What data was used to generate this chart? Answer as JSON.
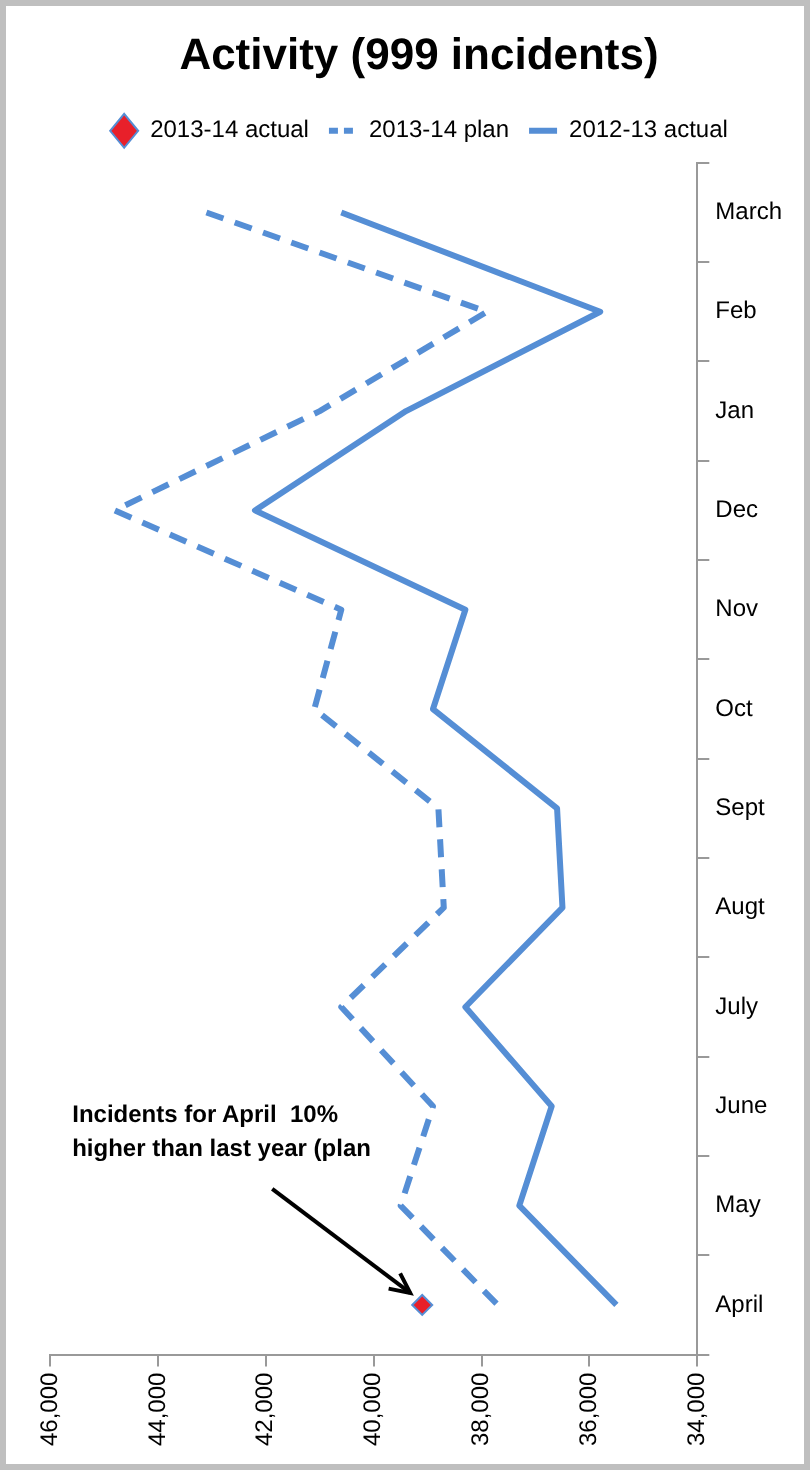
{
  "chart_data": {
    "type": "line",
    "title": "Activity (999 incidents)",
    "orientation": "horizontal",
    "categories": [
      "March",
      "Feb",
      "Jan",
      "Dec",
      "Nov",
      "Oct",
      "Sept",
      "Augt",
      "July",
      "June",
      "May",
      "April"
    ],
    "series": [
      {
        "name": "2013-14 actual",
        "color": "#e8202a",
        "marker": "diamond",
        "values": [
          null,
          null,
          null,
          null,
          null,
          null,
          null,
          null,
          null,
          null,
          null,
          39100
        ]
      },
      {
        "name": "2013-14 plan",
        "color": "#558ed5",
        "line_style": "dashed",
        "values": [
          43100,
          37900,
          41000,
          44800,
          40600,
          41100,
          38800,
          38700,
          40600,
          38900,
          39500,
          37700
        ]
      },
      {
        "name": "2012-13 actual",
        "color": "#558ed5",
        "line_style": "solid",
        "values": [
          40600,
          35800,
          39400,
          42200,
          38300,
          38900,
          36600,
          36500,
          38300,
          36700,
          37300,
          35500
        ]
      }
    ],
    "xlim": [
      46000,
      34000
    ],
    "xticks": [
      {
        "value": 46000,
        "label": "46,000"
      },
      {
        "value": 44000,
        "label": "44,000"
      },
      {
        "value": 42000,
        "label": "42,000"
      },
      {
        "value": 40000,
        "label": "40,000"
      },
      {
        "value": 38000,
        "label": "38,000"
      },
      {
        "value": 36000,
        "label": "36,000"
      },
      {
        "value": 34000,
        "label": "34,000"
      }
    ],
    "grid": false,
    "legend": "top",
    "annotations": [
      {
        "text": "Incidents for April  10% higher than last year (plan",
        "x": 39100,
        "y": "April"
      }
    ]
  }
}
